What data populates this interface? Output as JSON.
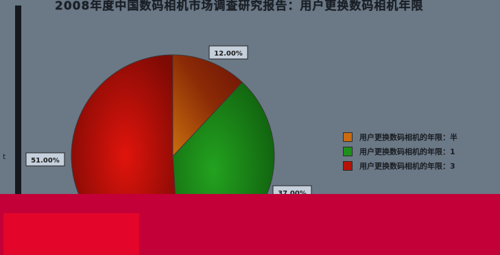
{
  "chart_data": {
    "type": "pie",
    "title": "2008年度中国数码相机市场调查研究报告：用户更换数码相机年限",
    "legend_position": "right",
    "slices": [
      {
        "label": "用户更换数码相机的年限：半",
        "value": 12.0,
        "label_text": "12.00%",
        "color": "#c96b10"
      },
      {
        "label": "用户更换数码相机的年限：1",
        "value": 37.0,
        "label_text": "37.00%",
        "color": "#1f8f1b"
      },
      {
        "label": "用户更换数码相机的年限：3",
        "value": 51.0,
        "label_text": "51.00%",
        "color": "#b51308"
      }
    ]
  },
  "colors": {
    "background": "#6b7886",
    "band": "#c40038",
    "block": "#e3052a",
    "label_box": "#c5d0dc"
  },
  "left_tick": "t"
}
